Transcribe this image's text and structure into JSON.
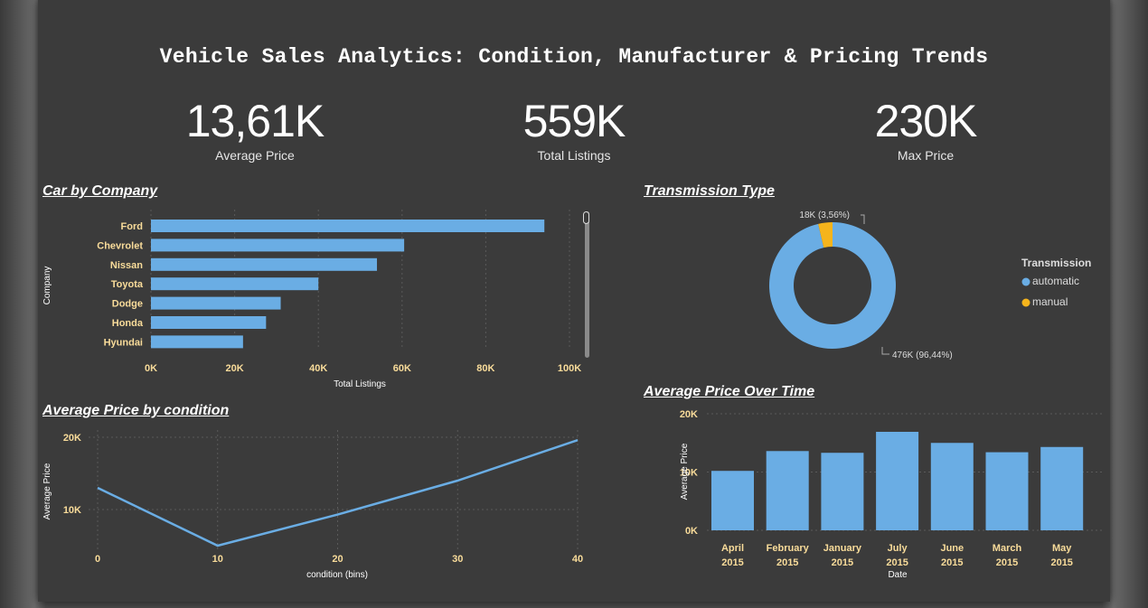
{
  "title": "Vehicle Sales Analytics: Condition, Manufacturer & Pricing Trends",
  "kpis": [
    {
      "value": "13,61K",
      "label": "Average Price"
    },
    {
      "value": "559K",
      "label": "Total Listings"
    },
    {
      "value": "230K",
      "label": "Max Price"
    }
  ],
  "colors": {
    "bar": "#6aade4",
    "manual": "#f5b41c",
    "label": "#f9dc9a",
    "axis_text": "#ffffff"
  },
  "chart_data": [
    {
      "type": "bar",
      "orientation": "horizontal",
      "title": "Car by Company",
      "xlabel": "Total Listings",
      "ylabel": "Company",
      "categories": [
        "Ford",
        "Chevrolet",
        "Nissan",
        "Toyota",
        "Dodge",
        "Honda",
        "Hyundai"
      ],
      "values": [
        94000,
        60500,
        54000,
        40000,
        31000,
        27500,
        22000
      ],
      "xticks": [
        "0K",
        "20K",
        "40K",
        "60K",
        "80K",
        "100K"
      ],
      "xlim": [
        0,
        100000
      ],
      "grid": true
    },
    {
      "type": "pie",
      "donut": true,
      "title": "Transmission Type",
      "legend_title": "Transmission",
      "legend_position": "right",
      "slices": [
        {
          "name": "automatic",
          "value": 476,
          "label": "476K (96,44%)"
        },
        {
          "name": "manual",
          "value": 18,
          "label": "18K (3,56%)"
        }
      ]
    },
    {
      "type": "line",
      "title": "Average Price by condition",
      "xlabel": "condition (bins)",
      "ylabel": "Average Price",
      "x": [
        0,
        10,
        20,
        30,
        40
      ],
      "y": [
        13000,
        5000,
        9300,
        14000,
        19600
      ],
      "xticks": [
        "0",
        "10",
        "20",
        "30",
        "40"
      ],
      "yticks": [
        "10K",
        "20K"
      ],
      "ylim": [
        4500,
        20500
      ],
      "grid": true
    },
    {
      "type": "bar",
      "title": "Average Price Over Time",
      "xlabel": "Date",
      "ylabel": "Average Price",
      "categories": [
        [
          "April",
          "2015"
        ],
        [
          "February",
          "2015"
        ],
        [
          "January",
          "2015"
        ],
        [
          "July",
          "2015"
        ],
        [
          "June",
          "2015"
        ],
        [
          "March",
          "2015"
        ],
        [
          "May",
          "2015"
        ]
      ],
      "values": [
        10200,
        13600,
        13300,
        16900,
        15000,
        13400,
        14300
      ],
      "yticks": [
        "0K",
        "10K",
        "20K"
      ],
      "ylim": [
        0,
        20000
      ],
      "grid": true
    }
  ]
}
